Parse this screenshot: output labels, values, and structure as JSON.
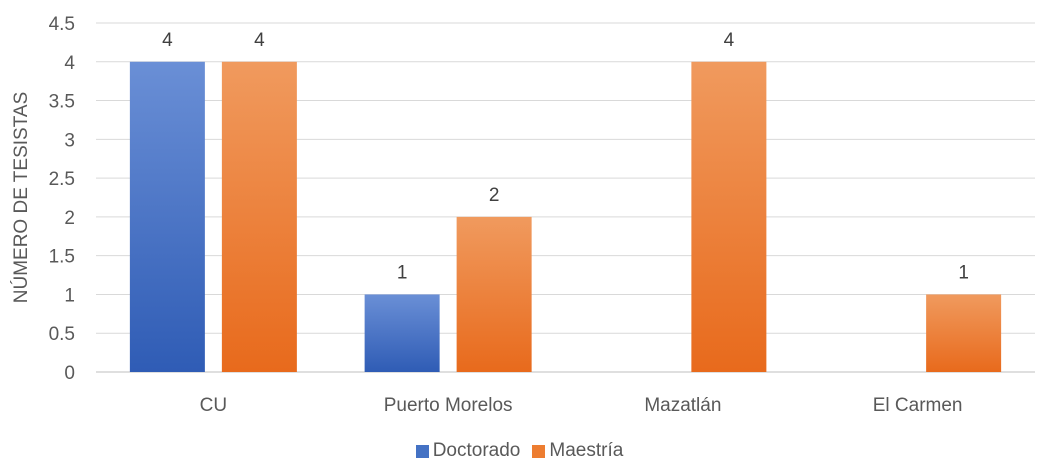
{
  "chart_data": {
    "type": "bar",
    "title": "",
    "xlabel": "",
    "ylabel": "NÚMERO DE TESISTAS",
    "ylim": [
      0,
      4.5
    ],
    "yticks": [
      "0",
      "0.5",
      "1",
      "1.5",
      "2",
      "2.5",
      "3",
      "3.5",
      "4",
      "4.5"
    ],
    "categories": [
      "CU",
      "Puerto Morelos",
      "Mazatlán",
      "El Carmen"
    ],
    "series": [
      {
        "name": "Doctorado",
        "values": [
          4,
          1,
          null,
          null
        ],
        "color_top": "#6a8fd6",
        "color_bottom": "#2f5cb5",
        "swatch": "#4472c4"
      },
      {
        "name": "Maestría",
        "values": [
          4,
          2,
          4,
          1
        ],
        "color_top": "#f09a5e",
        "color_bottom": "#e86a1c",
        "swatch": "#ed7d31"
      }
    ],
    "grid": true,
    "legend_position": "bottom"
  }
}
